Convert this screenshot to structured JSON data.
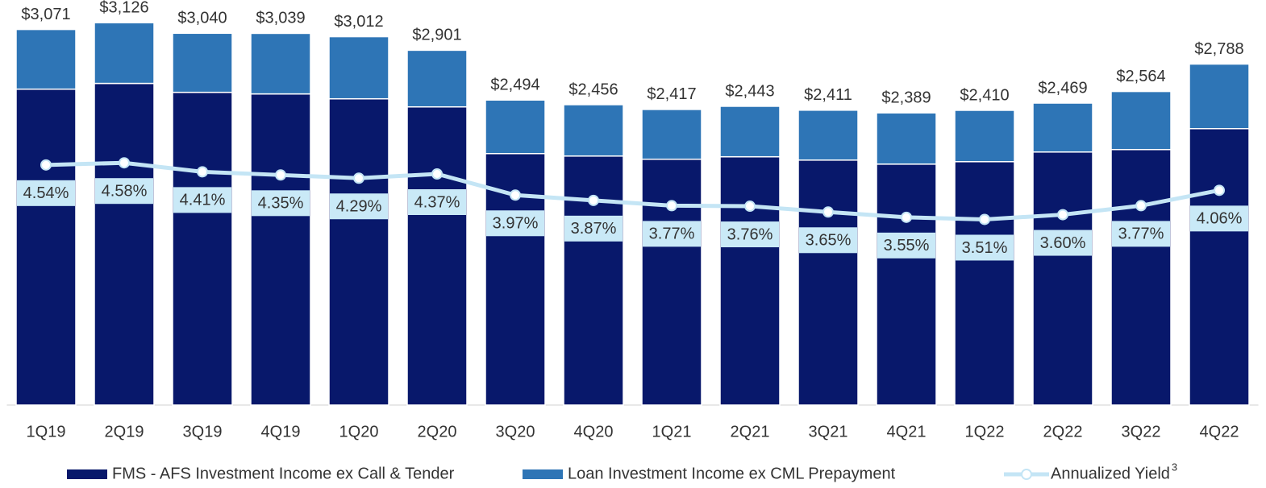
{
  "chart_data": {
    "type": "bar",
    "categories": [
      "1Q19",
      "2Q19",
      "3Q19",
      "4Q19",
      "1Q20",
      "2Q20",
      "3Q20",
      "4Q20",
      "1Q21",
      "2Q21",
      "3Q21",
      "4Q21",
      "1Q22",
      "2Q22",
      "3Q22",
      "4Q22"
    ],
    "stacked": true,
    "series": [
      {
        "name": "FMS - AFS Investment Income ex Call & Tender",
        "color": "#08186b",
        "values": [
          2583,
          2630,
          2557,
          2544,
          2504,
          2438,
          2056,
          2036,
          2010,
          2030,
          2003,
          1970,
          1990,
          2069,
          2089,
          2260
        ]
      },
      {
        "name": "Loan Investment Income ex CML Prepayment",
        "color": "#2e75b6",
        "values": [
          488,
          496,
          483,
          495,
          508,
          463,
          438,
          420,
          407,
          413,
          408,
          419,
          420,
          400,
          475,
          528
        ]
      },
      {
        "name": "Annualized Yield",
        "type": "line",
        "axis": "y2",
        "color": "#c4e5f5",
        "values": [
          4.54,
          4.58,
          4.41,
          4.35,
          4.29,
          4.37,
          3.97,
          3.87,
          3.77,
          3.76,
          3.65,
          3.55,
          3.51,
          3.6,
          3.77,
          4.06
        ],
        "value_labels": [
          "4.54%",
          "4.58%",
          "4.41%",
          "4.35%",
          "4.29%",
          "4.37%",
          "3.97%",
          "3.87%",
          "3.77%",
          "3.76%",
          "3.65%",
          "3.55%",
          "3.51%",
          "3.60%",
          "3.77%",
          "4.06%"
        ]
      }
    ],
    "totals": [
      3071,
      3126,
      3040,
      3039,
      3012,
      2901,
      2494,
      2456,
      2417,
      2443,
      2411,
      2389,
      2410,
      2469,
      2564,
      2788
    ],
    "total_labels": [
      "$3,071",
      "$3,126",
      "$3,040",
      "$3,039",
      "$3,012",
      "$2,901",
      "$2,494",
      "$2,456",
      "$2,417",
      "$2,443",
      "$2,411",
      "$2,389",
      "$2,410",
      "$2,469",
      "$2,564",
      "$2,788"
    ],
    "legend_footnote": "3",
    "ylim": [
      0,
      3200
    ],
    "y2lim": [
      0,
      7.4
    ],
    "legend": "bottom"
  }
}
